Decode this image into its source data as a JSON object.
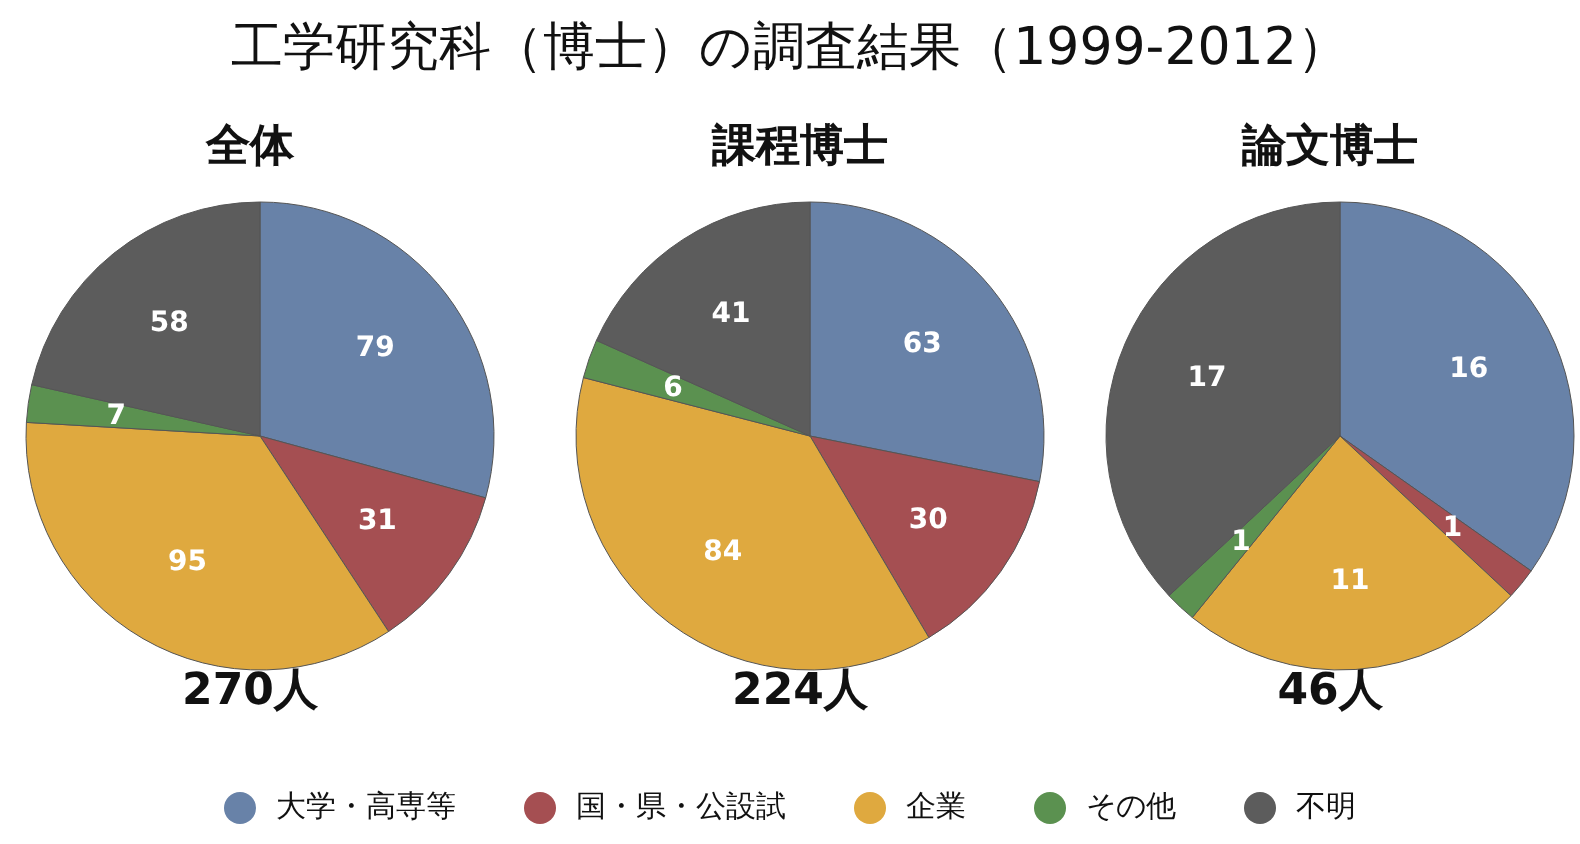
{
  "chart_data": [
    {
      "type": "pie",
      "title": "工学研究科（博士）の調査結果（1999-2012）",
      "subtitle": "全体",
      "categories": [
        "大学・高専等",
        "国・県・公設試",
        "企業",
        "その他",
        "不明"
      ],
      "values": [
        79,
        31,
        95,
        7,
        58
      ],
      "colors": [
        "#6882a8",
        "#a54f52",
        "#dfa93f",
        "#5b9150",
        "#5c5c5c"
      ],
      "data_labels": true,
      "legend": "bottom",
      "annotations": [
        "270人"
      ]
    },
    {
      "type": "pie",
      "subtitle": "課程博士",
      "categories": [
        null,
        null,
        null,
        null,
        null
      ],
      "values": [
        63,
        30,
        84,
        6,
        41
      ],
      "colors": [
        "#6882a8",
        "#a54f52",
        "#dfa93f",
        "#5b9150",
        "#5c5c5c"
      ],
      "data_labels": true,
      "annotations": [
        "224人"
      ]
    },
    {
      "type": "pie",
      "subtitle": "論文博士",
      "categories": [
        null,
        null,
        null,
        null,
        null
      ],
      "values": [
        16,
        1,
        11,
        1,
        17
      ],
      "colors": [
        "#6882a8",
        "#a54f52",
        "#dfa93f",
        "#5b9150",
        "#5c5c5c"
      ],
      "data_labels": true,
      "annotations": [
        "46人"
      ]
    }
  ]
}
